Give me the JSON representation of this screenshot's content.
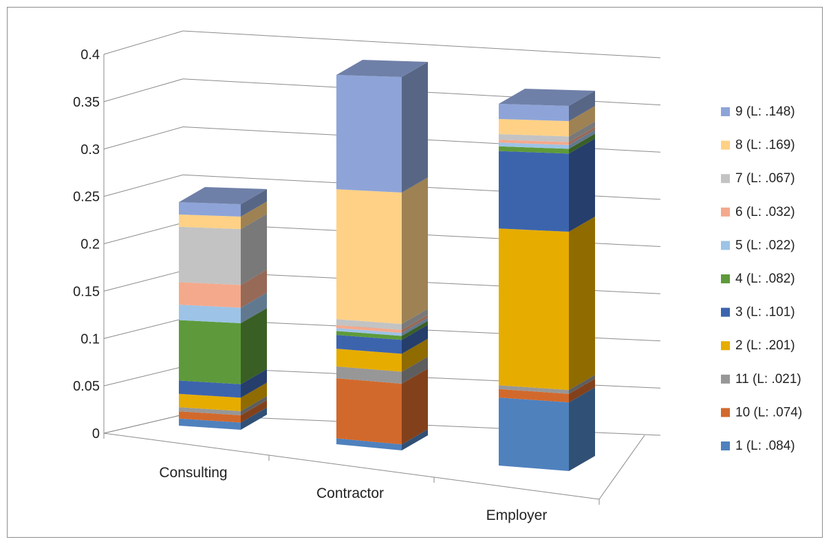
{
  "chart_data": {
    "type": "bar",
    "stacked": true,
    "three_d": true,
    "categories": [
      "Consulting",
      "Contractor",
      "Employer"
    ],
    "ylim": [
      0,
      0.4
    ],
    "yticks": [
      "0",
      "0.05",
      "0.1",
      "0.15",
      "0.2",
      "0.25",
      "0.3",
      "0.35",
      "0.4"
    ],
    "grid": true,
    "legend_position": "right",
    "series": [
      {
        "name": "1 (L: .084)",
        "color": "#4f81bd",
        "values": [
          0.007,
          0.006,
          0.072
        ]
      },
      {
        "name": "10 (L: .074)",
        "color": "#d2692c",
        "values": [
          0.007,
          0.061,
          0.009
        ]
      },
      {
        "name": "11 (L: .021)",
        "color": "#979797",
        "values": [
          0.004,
          0.012,
          0.004
        ]
      },
      {
        "name": "2 (L: .201)",
        "color": "#e6ac00",
        "values": [
          0.013,
          0.018,
          0.166
        ]
      },
      {
        "name": "3 (L: .101)",
        "color": "#3c64ad",
        "values": [
          0.013,
          0.014,
          0.082
        ]
      },
      {
        "name": "4 (L: .082)",
        "color": "#5e9a3b",
        "values": [
          0.059,
          0.004,
          0.005
        ]
      },
      {
        "name": "5 (L: .022)",
        "color": "#9dc3e6",
        "values": [
          0.015,
          0.003,
          0.004
        ]
      },
      {
        "name": "6 (L: .032)",
        "color": "#f4a98c",
        "values": [
          0.022,
          0.003,
          0.003
        ]
      },
      {
        "name": "7 (L: .067)",
        "color": "#c3c3c3",
        "values": [
          0.054,
          0.006,
          0.006
        ]
      },
      {
        "name": "8 (L: .169)",
        "color": "#ffd186",
        "values": [
          0.012,
          0.132,
          0.016
        ]
      },
      {
        "name": "9 (L: .148)",
        "color": "#8ea4d8",
        "values": [
          0.012,
          0.116,
          0.016
        ]
      }
    ]
  }
}
